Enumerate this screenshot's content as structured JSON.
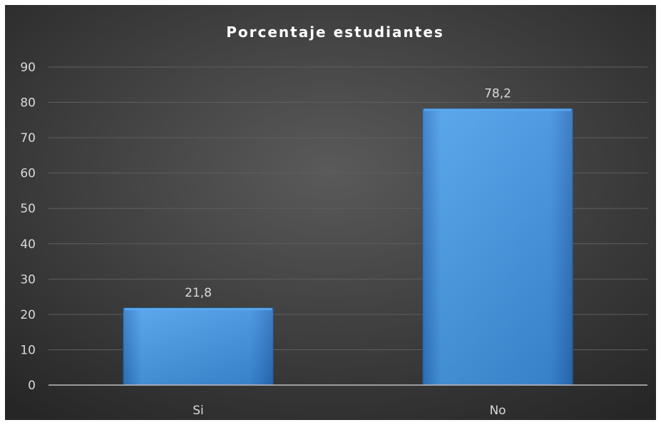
{
  "chart_data": {
    "type": "bar",
    "title": "Porcentaje estudiantes",
    "xlabel": "",
    "ylabel": "",
    "categories": [
      "Si",
      "No"
    ],
    "values": [
      21.8,
      78.2
    ],
    "value_labels": [
      "21,8",
      "78,2"
    ],
    "ylim": [
      0,
      90
    ],
    "yticks": [
      0,
      10,
      20,
      30,
      40,
      50,
      60,
      70,
      80,
      90
    ],
    "grid": true,
    "legend": "none",
    "colors": {
      "bar": "#3d8fe0",
      "bar_highlight": "#5aa8f0",
      "background_center": "#5a5a5a",
      "background_edge": "#262626",
      "gridline": "#5e5e5e",
      "axis": "#bfbfbf",
      "text": "#d9d9d9",
      "title": "#ffffff"
    }
  }
}
